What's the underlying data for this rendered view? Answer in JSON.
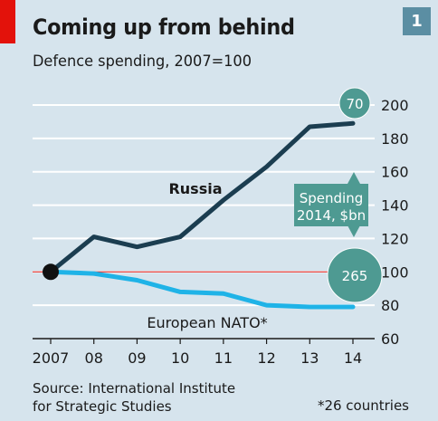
{
  "chart_data": {
    "type": "line",
    "title": "Coming up from behind",
    "subtitle": "Defence spending, 2007=100",
    "badge": "1",
    "x_tick_labels": [
      "2007",
      "08",
      "09",
      "10",
      "11",
      "12",
      "13",
      "14"
    ],
    "x": [
      2007,
      2008,
      2009,
      2010,
      2011,
      2012,
      2013,
      2014
    ],
    "ylim": [
      60,
      200
    ],
    "yticks": [
      60,
      80,
      100,
      120,
      140,
      160,
      180,
      200
    ],
    "y_axis_side": "right",
    "grid": true,
    "baseline": 100,
    "series": [
      {
        "name": "Russia",
        "color": "#1b3d50",
        "values": [
          100,
          121,
          115,
          121,
          143,
          163,
          187,
          189
        ]
      },
      {
        "name": "European NATO*",
        "color": "#1fb3e7",
        "values": [
          100,
          99,
          95,
          88,
          87,
          80,
          79,
          79
        ]
      }
    ],
    "annotations": {
      "legend_box": "Spending 2014, $bn",
      "legend_box_lines": [
        "Spending",
        "2014, $bn"
      ],
      "russia_spending": "70",
      "nato_spending": "265"
    },
    "source_lines": [
      "Source: International Institute",
      "for Strategic Studies"
    ],
    "footnote": "*26 countries"
  },
  "colors": {
    "background": "#d6e4ed",
    "accent_red": "#e3120b",
    "badge": "#5b8ea3",
    "bubble": "#4e9a92"
  }
}
